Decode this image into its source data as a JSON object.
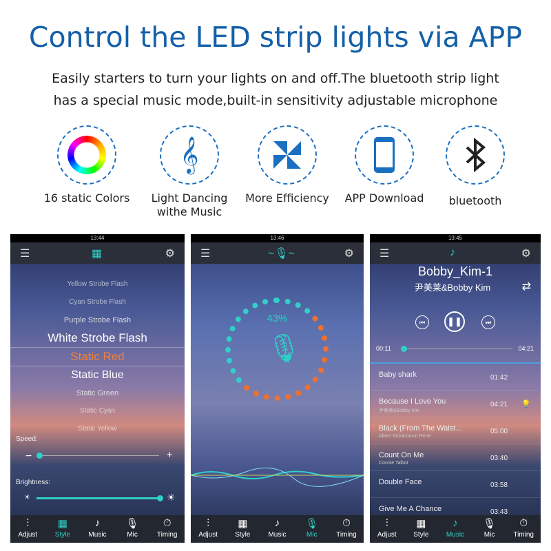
{
  "title": "Control the LED strip lights via APP",
  "subtitle": "Easily starters to turn your lights on and off.The bluetooth strip light has a special music mode,built-in sensitivity adjustable microphone",
  "features": [
    {
      "icon": "color-ring-icon",
      "label": "16 static Colors"
    },
    {
      "icon": "music-note-icon",
      "label": "Light Dancing withe Music"
    },
    {
      "icon": "pinwheel-icon",
      "label": "More Efficiency"
    },
    {
      "icon": "smartphone-icon",
      "label": "APP Download"
    },
    {
      "icon": "bluetooth-icon",
      "label": "bluetooth"
    }
  ],
  "tabs": [
    "Adjust",
    "Style",
    "Music",
    "Mic",
    "Timing"
  ],
  "accent": "#2fd0c8",
  "phones": [
    {
      "time": "13:44",
      "styles": [
        "Yellow Strobe Flash",
        "Cyan Strobe Flash",
        "Purple Strobe Flash",
        "White Strobe Flash",
        "Static Red",
        "Static Blue",
        "Static Green",
        "Static Cyan",
        "Static Yellow"
      ],
      "selected": "Static Red",
      "speed_label": "Speed:",
      "speed_value": 0.1,
      "brightness_label": "Brightness:",
      "brightness_value": 1.0,
      "minus": "−",
      "plus": "+"
    },
    {
      "time": "13:46",
      "mic_level": "43%"
    },
    {
      "time": "13:45",
      "song_title": "Bobby_Kim-1",
      "artist": "尹美莱&Bobby Kim",
      "elapsed": "00:11",
      "duration": "04:21",
      "songs": [
        {
          "title": "Baby shark",
          "artist": "",
          "time": "01:42"
        },
        {
          "title": "Because I Love You",
          "artist": "尹美莱&Bobby Kim",
          "time": "04:21"
        },
        {
          "title": "Black (From The Waist...",
          "artist": "Albert Kick&Jason Rene",
          "time": "05:00"
        },
        {
          "title": "Count On Me",
          "artist": "Connie Talbot",
          "time": "03:40"
        },
        {
          "title": "Double Face",
          "artist": "",
          "time": "03:58"
        },
        {
          "title": "Give Me A Chance",
          "artist": "",
          "time": "03:43"
        }
      ]
    }
  ],
  "active_tabs": [
    "Style",
    "Mic",
    "Music"
  ]
}
